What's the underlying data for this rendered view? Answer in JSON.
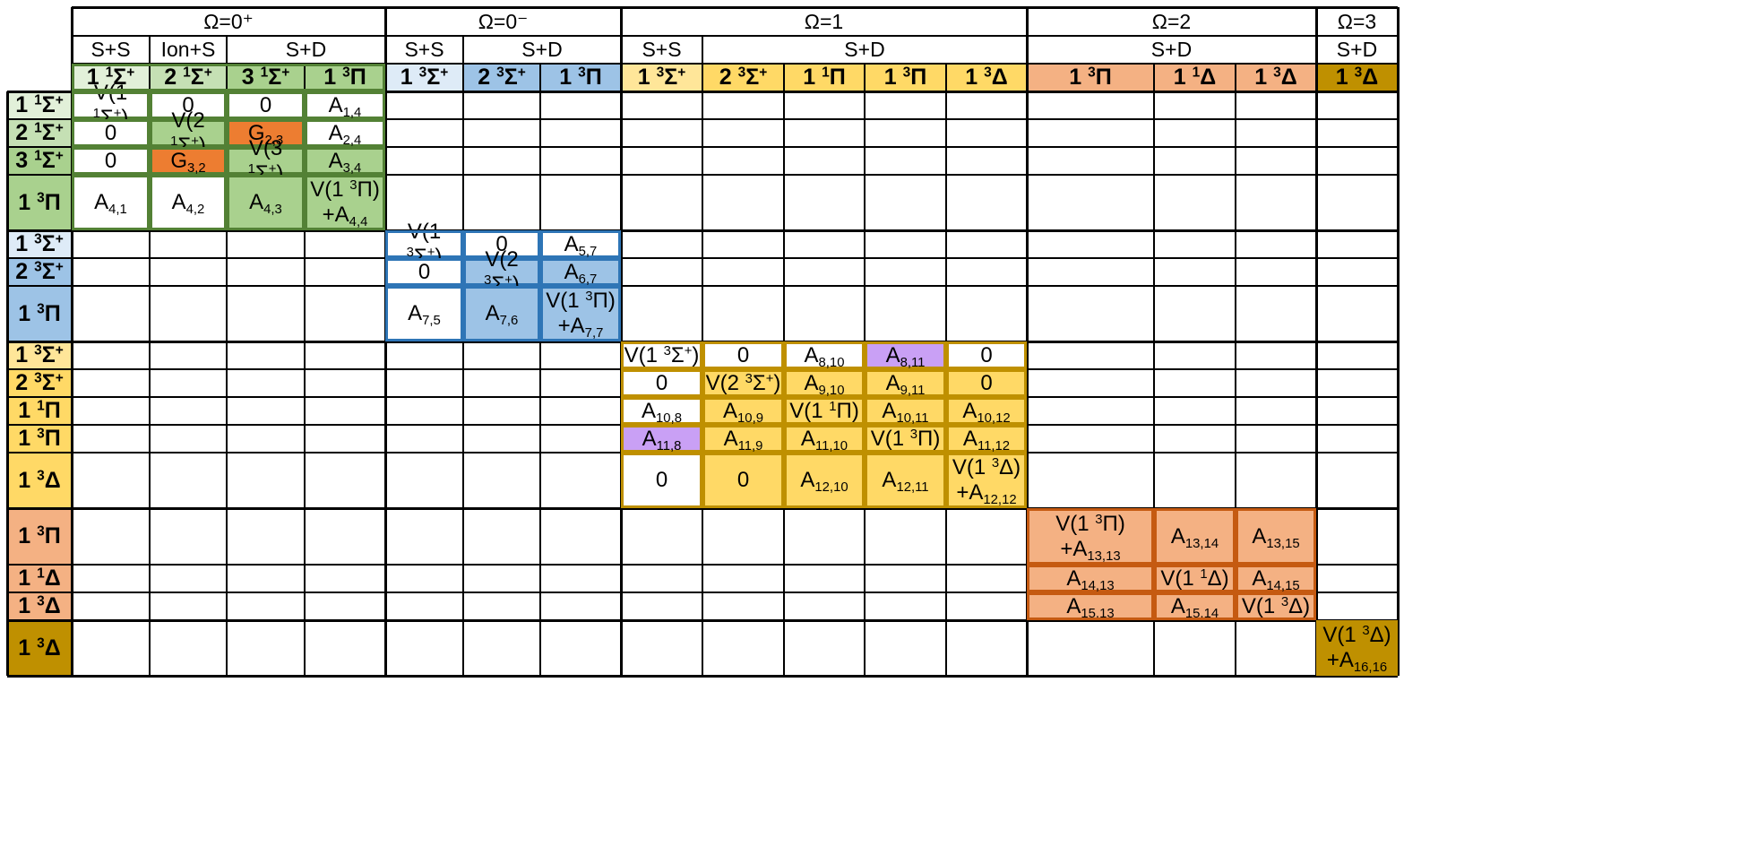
{
  "header_groups": [
    {
      "text": "Ω=0⁺",
      "c0": 0,
      "c1": 4
    },
    {
      "text": "Ω=0⁻",
      "c0": 4,
      "c1": 7
    },
    {
      "text": "Ω=1",
      "c0": 7,
      "c1": 12
    },
    {
      "text": "Ω=2",
      "c0": 12,
      "c1": 15
    },
    {
      "text": "Ω=3",
      "c0": 15,
      "c1": 16
    }
  ],
  "asymptote_groups": [
    {
      "text": "S+S",
      "c0": 0,
      "c1": 1
    },
    {
      "text": "Ion+S",
      "c0": 1,
      "c1": 2
    },
    {
      "text": "S+D",
      "c0": 2,
      "c1": 4
    },
    {
      "text": "S+S",
      "c0": 4,
      "c1": 5
    },
    {
      "text": "S+D",
      "c0": 5,
      "c1": 7
    },
    {
      "text": "S+S",
      "c0": 7,
      "c1": 8
    },
    {
      "text": "S+D",
      "c0": 8,
      "c1": 12
    },
    {
      "text": "S+D",
      "c0": 12,
      "c1": 15
    },
    {
      "text": "S+D",
      "c0": 15,
      "c1": 16
    }
  ],
  "states": [
    {
      "label": "1 ^1Σ^+",
      "block": "g0"
    },
    {
      "label": "2 ^1Σ^+",
      "block": "g0"
    },
    {
      "label": "3 ^1Σ^+",
      "block": "g0"
    },
    {
      "label": "1 ^3Π",
      "block": "g0"
    },
    {
      "label": "1 ^3Σ^+",
      "block": "b0"
    },
    {
      "label": "2 ^3Σ^+",
      "block": "b0"
    },
    {
      "label": "1 ^3Π",
      "block": "b0"
    },
    {
      "label": "1 ^3Σ^+",
      "block": "y1"
    },
    {
      "label": "2 ^3Σ^+",
      "block": "y1"
    },
    {
      "label": "1 ^1Π",
      "block": "y1"
    },
    {
      "label": "1 ^3Π",
      "block": "y1"
    },
    {
      "label": "1 ^3Δ",
      "block": "y1"
    },
    {
      "label": "1 ^3Π",
      "block": "o2"
    },
    {
      "label": "1 ^1Δ",
      "block": "o2"
    },
    {
      "label": "1 ^3Δ",
      "block": "o2"
    },
    {
      "label": "1 ^3Δ",
      "block": "k3"
    }
  ],
  "matrix_cells": [
    {
      "r": 0,
      "c": 0,
      "t": "V(1 ^1Σ^+)",
      "f": "w"
    },
    {
      "r": 0,
      "c": 1,
      "t": "0",
      "f": "w"
    },
    {
      "r": 0,
      "c": 2,
      "t": "0",
      "f": "w"
    },
    {
      "r": 0,
      "c": 3,
      "t": "A_1,4",
      "f": "w"
    },
    {
      "r": 1,
      "c": 0,
      "t": "0",
      "f": "w"
    },
    {
      "r": 1,
      "c": 1,
      "t": "V(2 ^1Σ^+)",
      "f": "g"
    },
    {
      "r": 1,
      "c": 2,
      "t": "G_2,3",
      "f": "x"
    },
    {
      "r": 1,
      "c": 3,
      "t": "A_2,4",
      "f": "w"
    },
    {
      "r": 2,
      "c": 0,
      "t": "0",
      "f": "w"
    },
    {
      "r": 2,
      "c": 1,
      "t": "G_3,2",
      "f": "x"
    },
    {
      "r": 2,
      "c": 2,
      "t": "V(3 ^1Σ^+)",
      "f": "g"
    },
    {
      "r": 2,
      "c": 3,
      "t": "A_3,4",
      "f": "g"
    },
    {
      "r": 3,
      "c": 0,
      "t": "A_4,1",
      "f": "w"
    },
    {
      "r": 3,
      "c": 1,
      "t": "A_4,2",
      "f": "w"
    },
    {
      "r": 3,
      "c": 2,
      "t": "A_4,3",
      "f": "g"
    },
    {
      "r": 3,
      "c": 3,
      "t": "V(1 ^3Π)|+A_4,4",
      "f": "g"
    },
    {
      "r": 4,
      "c": 4,
      "t": "V(1 ^3Σ^+)",
      "f": "w"
    },
    {
      "r": 4,
      "c": 5,
      "t": "0",
      "f": "w"
    },
    {
      "r": 4,
      "c": 6,
      "t": "A_5,7",
      "f": "w"
    },
    {
      "r": 5,
      "c": 4,
      "t": "0",
      "f": "w"
    },
    {
      "r": 5,
      "c": 5,
      "t": "V(2 ^3Σ^+)",
      "f": "b"
    },
    {
      "r": 5,
      "c": 6,
      "t": "A_6,7",
      "f": "b"
    },
    {
      "r": 6,
      "c": 4,
      "t": "A_7,5",
      "f": "w"
    },
    {
      "r": 6,
      "c": 5,
      "t": "A_7,6",
      "f": "b"
    },
    {
      "r": 6,
      "c": 6,
      "t": "V(1 ^3Π)|+A_7,7",
      "f": "b"
    },
    {
      "r": 7,
      "c": 7,
      "t": "V(1 ^3Σ^+)",
      "f": "w"
    },
    {
      "r": 7,
      "c": 8,
      "t": "0",
      "f": "w"
    },
    {
      "r": 7,
      "c": 9,
      "t": "A_8,10",
      "f": "w"
    },
    {
      "r": 7,
      "c": 10,
      "t": "A_8,11",
      "f": "p"
    },
    {
      "r": 7,
      "c": 11,
      "t": "0",
      "f": "w"
    },
    {
      "r": 8,
      "c": 7,
      "t": "0",
      "f": "w"
    },
    {
      "r": 8,
      "c": 8,
      "t": "V(2 ^3Σ^+)",
      "f": "y"
    },
    {
      "r": 8,
      "c": 9,
      "t": "A_9,10",
      "f": "y"
    },
    {
      "r": 8,
      "c": 10,
      "t": "A_9,11",
      "f": "y"
    },
    {
      "r": 8,
      "c": 11,
      "t": "0",
      "f": "y"
    },
    {
      "r": 9,
      "c": 7,
      "t": "A_10,8",
      "f": "w"
    },
    {
      "r": 9,
      "c": 8,
      "t": "A_10,9",
      "f": "y"
    },
    {
      "r": 9,
      "c": 9,
      "t": "V(1 ^1Π)",
      "f": "y"
    },
    {
      "r": 9,
      "c": 10,
      "t": "A_10,11",
      "f": "y"
    },
    {
      "r": 9,
      "c": 11,
      "t": "A_10,12",
      "f": "y"
    },
    {
      "r": 10,
      "c": 7,
      "t": "A_11,8",
      "f": "p"
    },
    {
      "r": 10,
      "c": 8,
      "t": "A_11,9",
      "f": "y"
    },
    {
      "r": 10,
      "c": 9,
      "t": "A_11,10",
      "f": "y"
    },
    {
      "r": 10,
      "c": 10,
      "t": "V(1 ^3Π)",
      "f": "y"
    },
    {
      "r": 10,
      "c": 11,
      "t": "A_11,12",
      "f": "y"
    },
    {
      "r": 11,
      "c": 7,
      "t": "0",
      "f": "w"
    },
    {
      "r": 11,
      "c": 8,
      "t": "0",
      "f": "y"
    },
    {
      "r": 11,
      "c": 9,
      "t": "A_12,10",
      "f": "y"
    },
    {
      "r": 11,
      "c": 10,
      "t": "A_12,11",
      "f": "y"
    },
    {
      "r": 11,
      "c": 11,
      "t": "V(1 ^3Δ)|+A_12,12",
      "f": "y"
    },
    {
      "r": 12,
      "c": 12,
      "t": "V(1 ^3Π)|+A_13,13",
      "f": "o"
    },
    {
      "r": 12,
      "c": 13,
      "t": "A_13,14",
      "f": "o"
    },
    {
      "r": 12,
      "c": 14,
      "t": "A_13,15",
      "f": "o"
    },
    {
      "r": 13,
      "c": 12,
      "t": "A_14,13",
      "f": "o"
    },
    {
      "r": 13,
      "c": 13,
      "t": "V(1 ^1Δ)",
      "f": "o"
    },
    {
      "r": 13,
      "c": 14,
      "t": "A_14,15",
      "f": "o"
    },
    {
      "r": 14,
      "c": 12,
      "t": "A_15,13",
      "f": "o"
    },
    {
      "r": 14,
      "c": 13,
      "t": "A_15,14",
      "f": "o"
    },
    {
      "r": 14,
      "c": 14,
      "t": "V(1 ^3Δ)",
      "f": "o"
    },
    {
      "r": 15,
      "c": 15,
      "t": "V(1 ^3Δ)|+A_16,16",
      "f": "k"
    }
  ],
  "colors": {
    "w": "#ffffff",
    "grid": "#000000",
    "g_label": "#a9d18e",
    "g_label_light": "#e2f0d9",
    "g_label_mid": "#c5e0b4",
    "g_fill": "#a9d18e",
    "g_border": "#538135",
    "b_label": "#9dc3e6",
    "b_label_light": "#deebf7",
    "b_fill": "#9dc3e6",
    "b_border": "#2e75b6",
    "y_label": "#ffd966",
    "y_label_light": "#ffe699",
    "y_fill": "#ffd966",
    "y_border": "#bf9000",
    "o_label": "#f4b183",
    "o_fill": "#f4b183",
    "o_border": "#c55a11",
    "k_label": "#bf9000",
    "k_fill": "#bf9000",
    "x_fill": "#ed7d31",
    "p_fill": "#c9a0f5"
  }
}
